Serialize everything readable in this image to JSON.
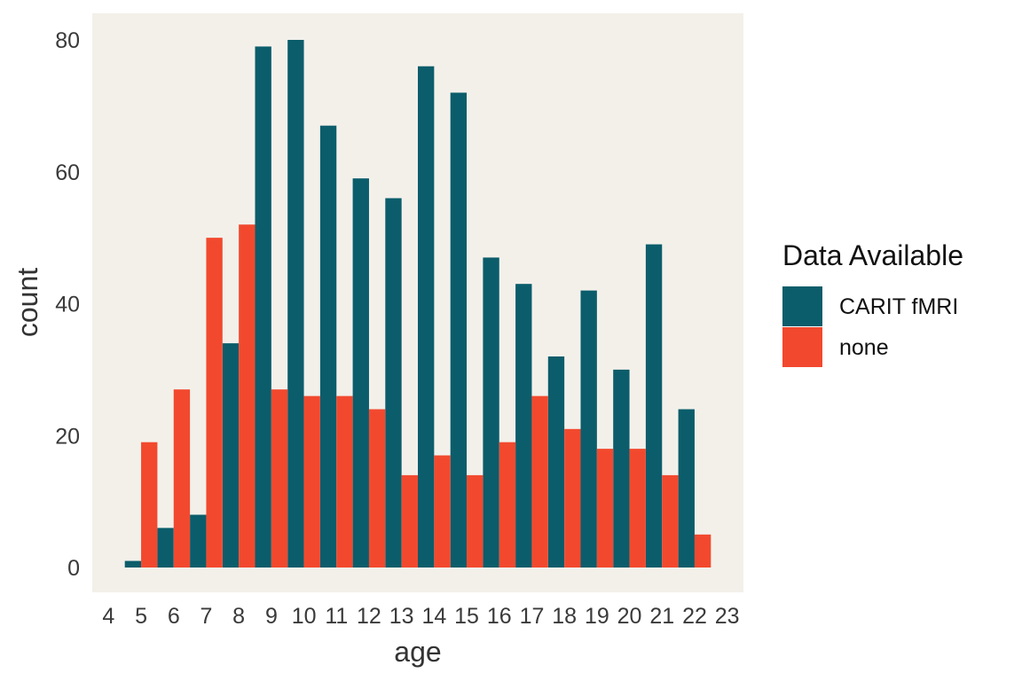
{
  "chart_data": {
    "type": "bar",
    "xlabel": "age",
    "ylabel": "count",
    "x_ticks": [
      "4",
      "5",
      "6",
      "7",
      "8",
      "9",
      "10",
      "11",
      "12",
      "13",
      "14",
      "15",
      "16",
      "17",
      "18",
      "19",
      "20",
      "21",
      "22",
      "23"
    ],
    "y_ticks": [
      "0",
      "20",
      "40",
      "60",
      "80"
    ],
    "ylim": [
      0,
      85
    ],
    "xlim": [
      3.5,
      23.5
    ],
    "grid": false,
    "background": "#f3f0ea",
    "legend": {
      "title": "Data Available",
      "position": "right",
      "entries": [
        "CARIT fMRI",
        "none"
      ]
    },
    "categories": [
      5,
      6,
      7,
      8,
      9,
      10,
      11,
      12,
      13,
      14,
      15,
      16,
      17,
      18,
      19,
      20,
      21,
      22
    ],
    "series": [
      {
        "name": "CARIT fMRI",
        "color": "#0b5d6b",
        "values": [
          1,
          6,
          8,
          34,
          79,
          80,
          67,
          59,
          56,
          76,
          72,
          47,
          43,
          32,
          42,
          30,
          49,
          24
        ]
      },
      {
        "name": "none",
        "color": "#f2492e",
        "values": [
          19,
          27,
          50,
          52,
          27,
          26,
          26,
          24,
          14,
          17,
          14,
          19,
          26,
          21,
          18,
          18,
          14,
          5
        ]
      }
    ]
  }
}
